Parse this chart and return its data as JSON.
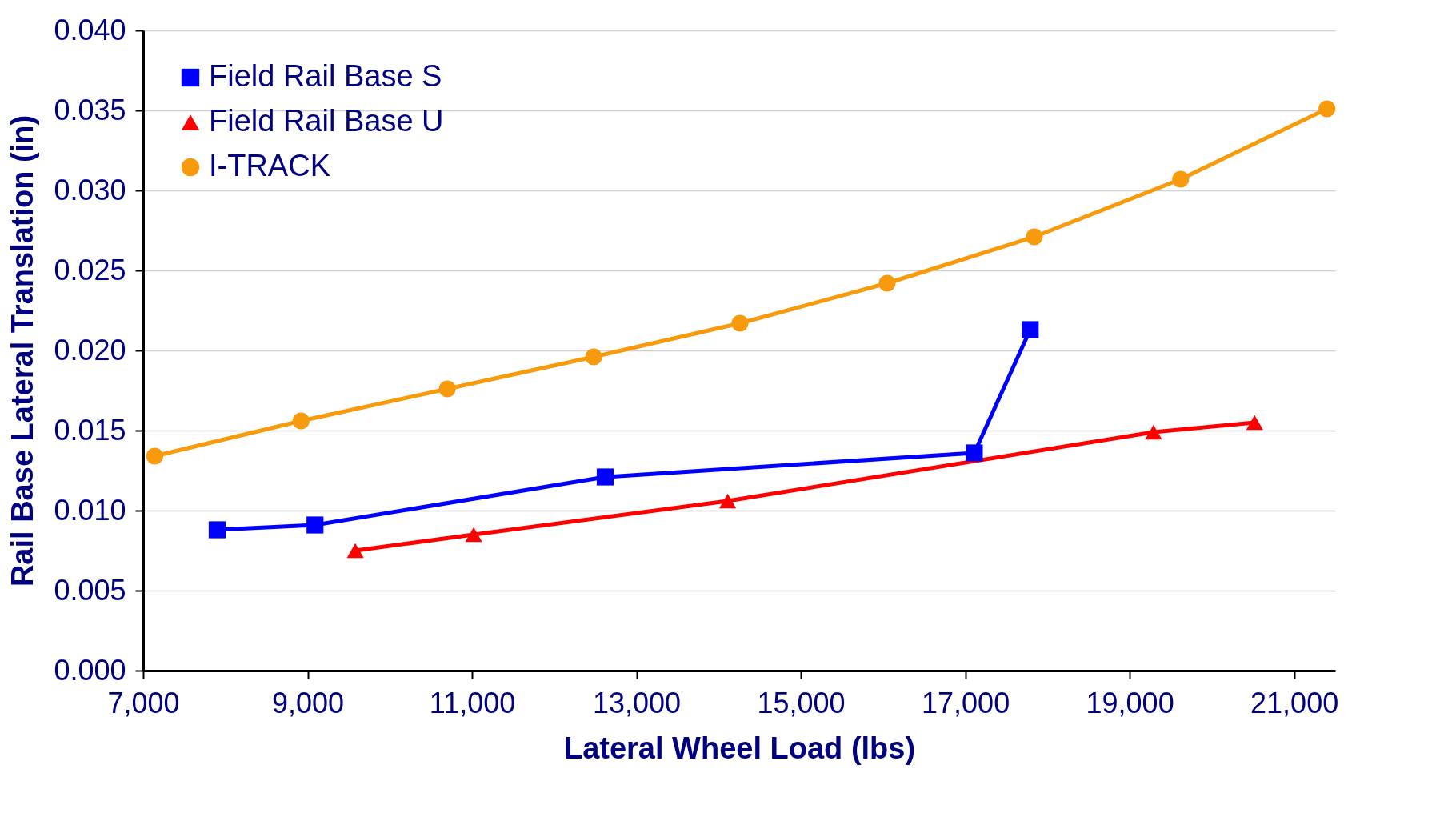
{
  "chart_data": {
    "type": "line",
    "xlabel": "Lateral Wheel Load (lbs)",
    "ylabel": "Rail Base Lateral Translation (in)",
    "xlim": [
      7000,
      21500
    ],
    "xticks": [
      {
        "value": 7000,
        "label": "7,000"
      },
      {
        "value": 9000,
        "label": "9,000"
      },
      {
        "value": 11000,
        "label": "11,000"
      },
      {
        "value": 13000,
        "label": "13,000"
      },
      {
        "value": 15000,
        "label": "15,000"
      },
      {
        "value": 17000,
        "label": "17,000"
      },
      {
        "value": 19000,
        "label": "19,000"
      },
      {
        "value": 21000,
        "label": "21,000"
      }
    ],
    "ylim": [
      0,
      0.04
    ],
    "yticks": [
      {
        "value": 0,
        "label": "0.000"
      },
      {
        "value": 0.005,
        "label": "0.005"
      },
      {
        "value": 0.01,
        "label": "0.010"
      },
      {
        "value": 0.015,
        "label": "0.015"
      },
      {
        "value": 0.02,
        "label": "0.020"
      },
      {
        "value": 0.025,
        "label": "0.025"
      },
      {
        "value": 0.03,
        "label": "0.030"
      },
      {
        "value": 0.035,
        "label": "0.035"
      },
      {
        "value": 0.04,
        "label": "0.040"
      }
    ],
    "grid": "y",
    "legend": "top left",
    "line_style": "solid",
    "series": [
      {
        "name": "Field Rail Base S",
        "color": "#0000ff",
        "marker": "square",
        "x": [
          7900,
          9090,
          12620,
          17110,
          17790
        ],
        "values": [
          0.0088,
          0.0091,
          0.0121,
          0.0136,
          0.0213
        ]
      },
      {
        "name": "Field Rail Base U",
        "color": "#ff0000",
        "marker": "triangle",
        "x": [
          9580,
          11020,
          14110,
          19290,
          20520
        ],
        "values": [
          0.0075,
          0.0085,
          0.0106,
          0.0149,
          0.0155
        ]
      },
      {
        "name": "I-TRACK",
        "color": "#f79a0c",
        "marker": "circle",
        "x": [
          7140,
          8920,
          10700,
          12480,
          14260,
          16050,
          17840,
          19620,
          21400
        ],
        "values": [
          0.0134,
          0.0156,
          0.0176,
          0.0196,
          0.0217,
          0.0242,
          0.0271,
          0.0307,
          0.0351
        ]
      }
    ]
  }
}
